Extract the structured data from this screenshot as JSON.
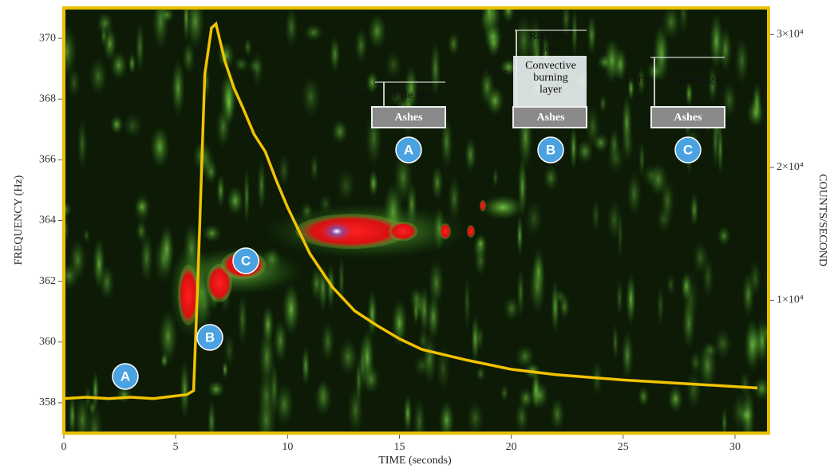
{
  "chart_data": {
    "type": "line",
    "x_label": "TIME (seconds)",
    "y_label": "FREQUENCY (Hz)",
    "y2_label": "COUNTS/SECOND",
    "xlim": [
      0,
      31.5
    ],
    "xticks": [
      0,
      5,
      10,
      15,
      20,
      25,
      30
    ],
    "ylim": [
      357,
      371
    ],
    "yticks": [
      358,
      360,
      362,
      364,
      366,
      368,
      370
    ],
    "y2lim": [
      0,
      32000
    ],
    "y2ticks": [
      {
        "value": 10000,
        "label": "1×10⁴"
      },
      {
        "value": 20000,
        "label": "2×10⁴"
      },
      {
        "value": 30000,
        "label": "3×10⁴"
      }
    ],
    "x": [
      0,
      1,
      2,
      3,
      4,
      5,
      5.5,
      5.8,
      6.0,
      6.3,
      6.6,
      6.8,
      7.2,
      7.6,
      8,
      8.5,
      9,
      9.5,
      10,
      11,
      12,
      13,
      14,
      15,
      16,
      18,
      20,
      22,
      25,
      28,
      31
    ],
    "series": [
      {
        "color": "#f2c200",
        "axis": "y2",
        "values": [
          2600,
          2700,
          2600,
          2700,
          2600,
          2800,
          2900,
          3200,
          12000,
          27000,
          30500,
          30800,
          28000,
          26000,
          24500,
          22500,
          21200,
          19000,
          17000,
          13500,
          11000,
          9200,
          8100,
          7100,
          6300,
          5500,
          4800,
          4400,
          4000,
          3700,
          3400
        ]
      }
    ],
    "annotations": [
      "A",
      "B",
      "C",
      "A",
      "B",
      "C",
      "∼ 10 m",
      "H/He layer",
      "Ashes",
      "Radiative",
      "zone",
      "Convective",
      "burning",
      "layer",
      "∼ 30 m",
      "Ashes",
      "∼ 20 m",
      "Residual",
      "H burning",
      "Ashes"
    ]
  }
}
